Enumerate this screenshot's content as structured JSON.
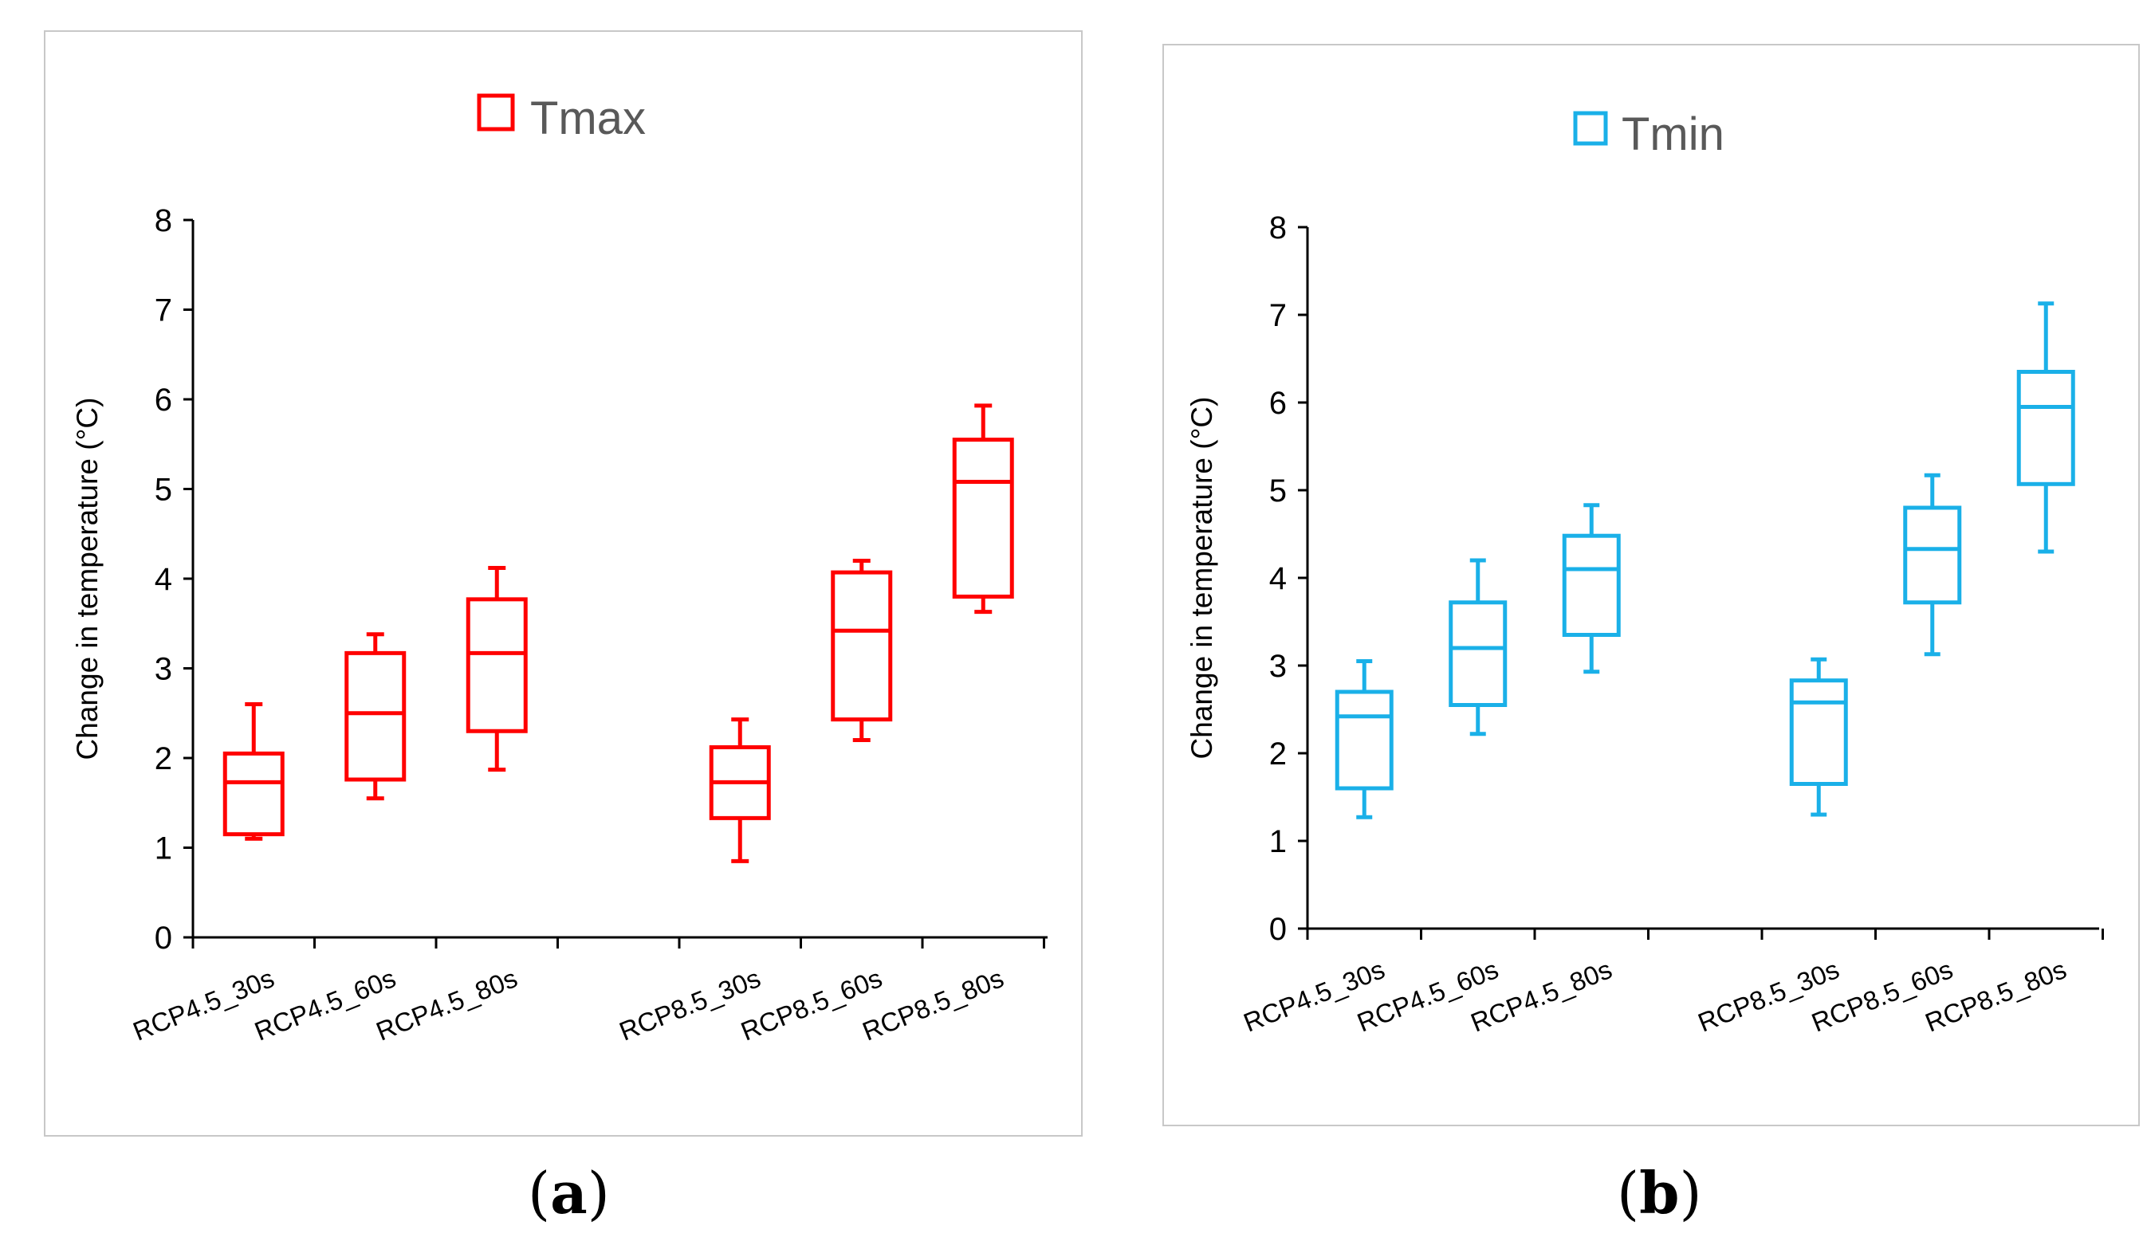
{
  "chart_data": [
    {
      "type": "boxplot",
      "panel_label": "a",
      "title": "Tmax",
      "legend_entry": "Tmax",
      "legend_position": "top-center",
      "color": "#ff0000",
      "ylabel": "Change in temperature (°C)",
      "xlabel": "",
      "ylim": [
        0,
        8
      ],
      "yticks": [
        "0",
        "1",
        "2",
        "3",
        "4",
        "5",
        "6",
        "7",
        "8"
      ],
      "categories": [
        "RCP4.5_30s",
        "RCP4.5_60s",
        "RCP4.5_80s",
        "RCP8.5_30s",
        "RCP8.5_60s",
        "RCP8.5_80s"
      ],
      "boxes": [
        {
          "min": 1.1,
          "q1": 1.15,
          "median": 1.73,
          "q3": 2.05,
          "max": 2.6
        },
        {
          "min": 1.55,
          "q1": 1.76,
          "median": 2.5,
          "q3": 3.17,
          "max": 3.38
        },
        {
          "min": 1.87,
          "q1": 2.3,
          "median": 3.17,
          "q3": 3.77,
          "max": 4.12
        },
        {
          "min": 0.85,
          "q1": 1.33,
          "median": 1.73,
          "q3": 2.12,
          "max": 2.43
        },
        {
          "min": 2.2,
          "q1": 2.43,
          "median": 3.42,
          "q3": 4.07,
          "max": 4.2
        },
        {
          "min": 3.63,
          "q1": 3.8,
          "median": 5.08,
          "q3": 5.55,
          "max": 5.93
        }
      ]
    },
    {
      "type": "boxplot",
      "panel_label": "b",
      "title": "Tmin",
      "legend_entry": "Tmin",
      "legend_position": "top-center",
      "color": "#1ab0e8",
      "ylabel": "Change in temperature (°C)",
      "xlabel": "",
      "ylim": [
        0,
        8
      ],
      "yticks": [
        "0",
        "1",
        "2",
        "3",
        "4",
        "5",
        "6",
        "7",
        "8"
      ],
      "categories": [
        "RCP4.5_30s",
        "RCP4.5_60s",
        "RCP4.5_80s",
        "RCP8.5_30s",
        "RCP8.5_60s",
        "RCP8.5_80s"
      ],
      "boxes": [
        {
          "min": 1.27,
          "q1": 1.6,
          "median": 2.42,
          "q3": 2.7,
          "max": 3.05
        },
        {
          "min": 2.22,
          "q1": 2.55,
          "median": 3.2,
          "q3": 3.72,
          "max": 4.2
        },
        {
          "min": 2.93,
          "q1": 3.35,
          "median": 4.1,
          "q3": 4.48,
          "max": 4.83
        },
        {
          "min": 1.3,
          "q1": 1.65,
          "median": 2.58,
          "q3": 2.83,
          "max": 3.07
        },
        {
          "min": 3.13,
          "q1": 3.72,
          "median": 4.33,
          "q3": 4.8,
          "max": 5.17
        },
        {
          "min": 4.3,
          "q1": 5.07,
          "median": 5.95,
          "q3": 6.35,
          "max": 7.13
        }
      ]
    }
  ],
  "captions": [
    "a",
    "b"
  ]
}
